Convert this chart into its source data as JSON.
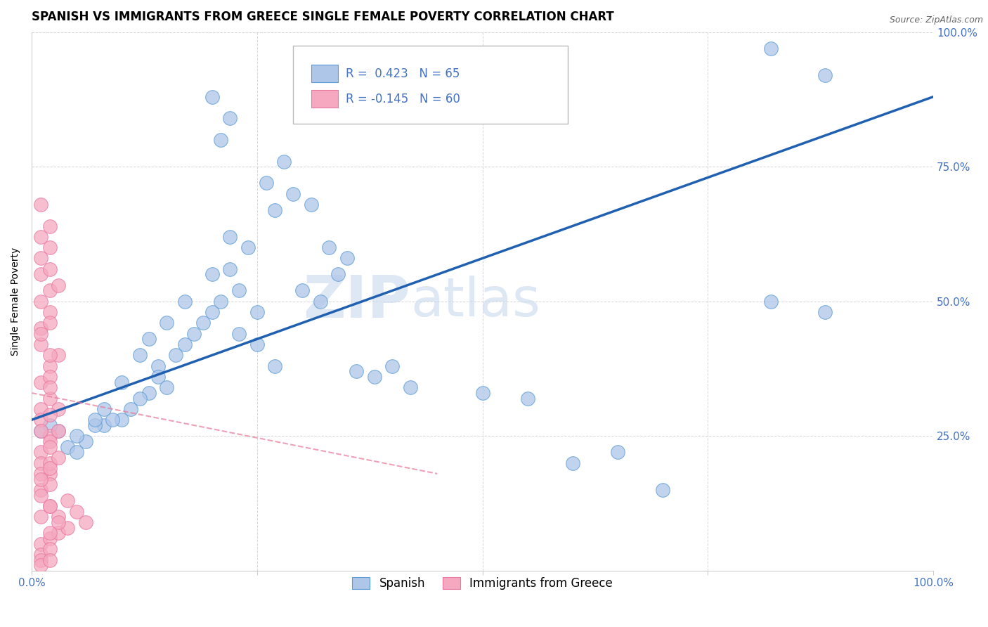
{
  "title": "SPANISH VS IMMIGRANTS FROM GREECE SINGLE FEMALE POVERTY CORRELATION CHART",
  "source": "Source: ZipAtlas.com",
  "ylabel": "Single Female Poverty",
  "xlim": [
    0,
    1
  ],
  "ylim": [
    0,
    1
  ],
  "blue_R": 0.423,
  "blue_N": 65,
  "pink_R": -0.145,
  "pink_N": 60,
  "blue_color": "#aec6e8",
  "pink_color": "#f5a8c0",
  "blue_edge_color": "#5b9bd5",
  "pink_edge_color": "#e878a0",
  "blue_line_color": "#2060b0",
  "pink_line_color": "#e87898",
  "watermark_zip": "ZIP",
  "watermark_atlas": "atlas",
  "legend_label_blue": "Spanish",
  "legend_label_pink": "Immigrants from Greece",
  "blue_x": [
    0.3,
    0.32,
    0.22,
    0.24,
    0.22,
    0.23,
    0.2,
    0.14,
    0.18,
    0.2,
    0.16,
    0.14,
    0.17,
    0.19,
    0.13,
    0.11,
    0.1,
    0.12,
    0.08,
    0.06,
    0.05,
    0.04,
    0.07,
    0.03,
    0.02,
    0.01,
    0.09,
    0.15,
    0.25,
    0.27,
    0.26,
    0.28,
    0.29,
    0.31,
    0.33,
    0.34,
    0.35,
    0.21,
    0.23,
    0.25,
    0.27,
    0.17,
    0.15,
    0.13,
    0.12,
    0.1,
    0.08,
    0.07,
    0.05,
    0.36,
    0.38,
    0.4,
    0.42,
    0.5,
    0.55,
    0.6,
    0.65,
    0.7,
    0.82,
    0.88,
    0.82,
    0.88,
    0.2,
    0.22,
    0.21
  ],
  "blue_y": [
    0.52,
    0.5,
    0.62,
    0.6,
    0.56,
    0.52,
    0.55,
    0.38,
    0.44,
    0.48,
    0.4,
    0.36,
    0.42,
    0.46,
    0.33,
    0.3,
    0.28,
    0.32,
    0.27,
    0.24,
    0.25,
    0.23,
    0.27,
    0.26,
    0.27,
    0.26,
    0.28,
    0.34,
    0.48,
    0.67,
    0.72,
    0.76,
    0.7,
    0.68,
    0.6,
    0.55,
    0.58,
    0.5,
    0.44,
    0.42,
    0.38,
    0.5,
    0.46,
    0.43,
    0.4,
    0.35,
    0.3,
    0.28,
    0.22,
    0.37,
    0.36,
    0.38,
    0.34,
    0.33,
    0.32,
    0.2,
    0.22,
    0.15,
    0.5,
    0.48,
    0.97,
    0.92,
    0.88,
    0.84,
    0.8
  ],
  "pink_x": [
    0.01,
    0.02,
    0.01,
    0.02,
    0.01,
    0.02,
    0.01,
    0.03,
    0.02,
    0.01,
    0.02,
    0.01,
    0.02,
    0.03,
    0.01,
    0.02,
    0.01,
    0.02,
    0.01,
    0.02,
    0.03,
    0.01,
    0.02,
    0.01,
    0.02,
    0.01,
    0.02,
    0.03,
    0.04,
    0.01,
    0.02,
    0.01,
    0.02,
    0.01,
    0.02,
    0.01,
    0.03,
    0.02,
    0.01,
    0.02,
    0.01,
    0.02,
    0.03,
    0.02,
    0.01,
    0.02,
    0.04,
    0.05,
    0.06,
    0.03,
    0.02,
    0.01,
    0.02,
    0.01,
    0.02,
    0.01,
    0.02,
    0.03,
    0.02,
    0.01
  ],
  "pink_y": [
    0.35,
    0.38,
    0.3,
    0.32,
    0.28,
    0.25,
    0.22,
    0.4,
    0.36,
    0.2,
    0.18,
    0.15,
    0.12,
    0.1,
    0.42,
    0.4,
    0.45,
    0.48,
    0.5,
    0.34,
    0.3,
    0.14,
    0.16,
    0.18,
    0.2,
    0.05,
    0.06,
    0.07,
    0.08,
    0.03,
    0.04,
    0.55,
    0.52,
    0.58,
    0.6,
    0.02,
    0.09,
    0.07,
    0.1,
    0.12,
    0.17,
    0.19,
    0.21,
    0.24,
    0.26,
    0.29,
    0.13,
    0.11,
    0.09,
    0.26,
    0.23,
    0.44,
    0.46,
    0.01,
    0.02,
    0.62,
    0.64,
    0.53,
    0.56,
    0.68
  ],
  "blue_trend_x0": 0.0,
  "blue_trend_x1": 1.0,
  "blue_trend_y0": 0.28,
  "blue_trend_y1": 0.88,
  "pink_trend_x0": 0.0,
  "pink_trend_x1": 0.45,
  "pink_trend_y0": 0.33,
  "pink_trend_y1": 0.18,
  "grid_color": "#cccccc",
  "tick_color": "#4472c4",
  "title_fontsize": 12,
  "tick_fontsize": 11,
  "ylabel_fontsize": 10
}
